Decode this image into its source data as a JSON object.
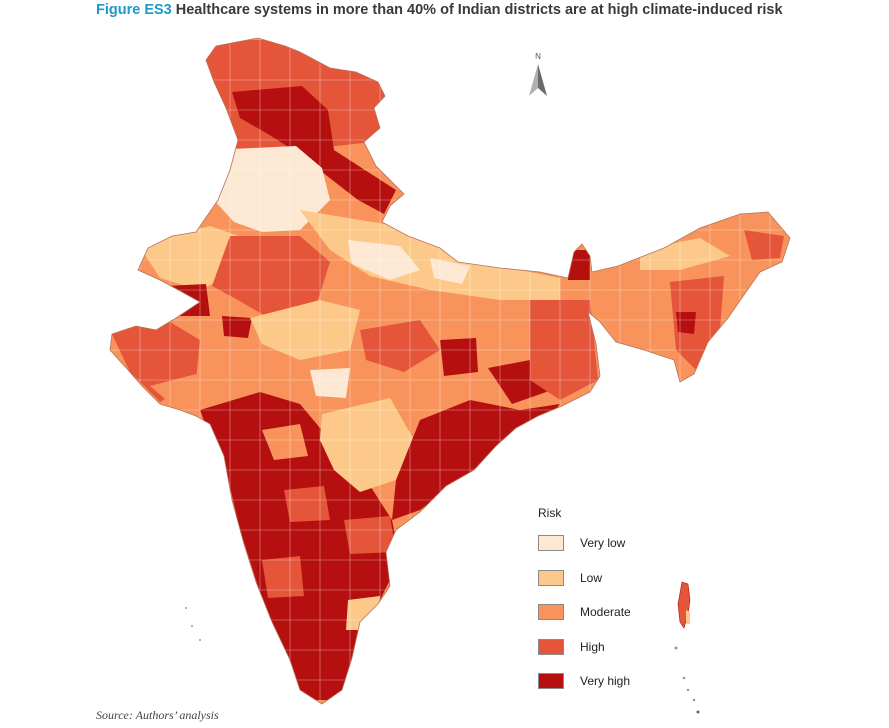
{
  "figure": {
    "label": "Figure ES3",
    "title": "Healthcare systems in more than 40% of Indian districts are at high climate-induced risk"
  },
  "north_arrow": {
    "label": "N",
    "icon": "north-arrow-icon"
  },
  "legend": {
    "title": "Risk",
    "items": [
      {
        "label": "Very low",
        "color": "#fde9d3"
      },
      {
        "label": "Low",
        "color": "#fcc98a"
      },
      {
        "label": "Moderate",
        "color": "#f8935b"
      },
      {
        "label": "High",
        "color": "#e4553a"
      },
      {
        "label": "Very high",
        "color": "#b50f10"
      }
    ]
  },
  "source": "Source: Authors’ analysis"
}
